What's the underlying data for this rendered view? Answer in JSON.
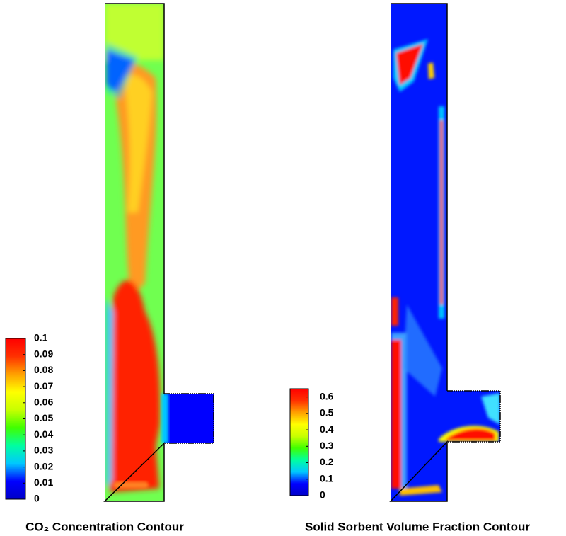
{
  "chart_data": [
    {
      "type": "contour",
      "title": "CO₂ Concentration Contour",
      "clim": [
        0,
        0.1
      ],
      "cticks": [
        0,
        0.01,
        0.02,
        0.03,
        0.04,
        0.05,
        0.06,
        0.07,
        0.08,
        0.09,
        0.1
      ],
      "colors": [
        "#0000c8",
        "#0000ff",
        "#00c8ff",
        "#00ffa0",
        "#40ff00",
        "#c8ff00",
        "#ffff00",
        "#ffa000",
        "#ff3000",
        "#ff0000"
      ]
    },
    {
      "type": "contour",
      "title": "Solid Sorbent Volume Fraction Contour",
      "clim": [
        0,
        0.65
      ],
      "cticks": [
        0,
        0.1,
        0.2,
        0.3,
        0.4,
        0.5,
        0.6
      ],
      "colors": [
        "#0000c8",
        "#0000ff",
        "#00c8ff",
        "#00ffa0",
        "#40ff00",
        "#c8ff00",
        "#ffff00",
        "#ffa000",
        "#ff3000",
        "#ff0000"
      ]
    }
  ]
}
